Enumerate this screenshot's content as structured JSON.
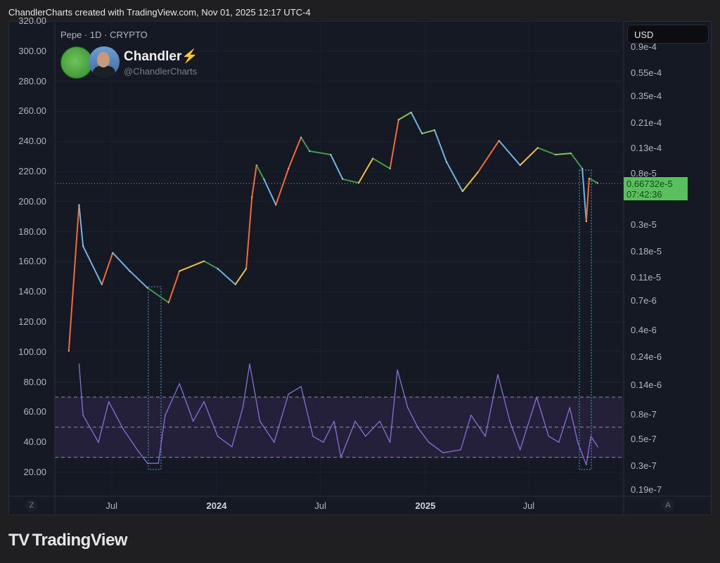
{
  "header": {
    "caption": "ChandlerCharts created with TradingView.com, Nov 01, 2025 12:17 UTC-4"
  },
  "legend": {
    "symbol": "Pepe · 1D · CRYPTO",
    "author_name": "Chandler",
    "author_badge": "⚡",
    "author_handle": "@ChandlerCharts"
  },
  "currency_button": "USD",
  "last_price": {
    "value": "0.66732e-5",
    "countdown": "07:42:36",
    "color": "#5cbf5f"
  },
  "axis_buttons": {
    "left": "Z",
    "right": "A"
  },
  "footer_logo": {
    "mark": "TV",
    "text": "TradingView"
  },
  "colors": {
    "background": "#151924",
    "rsi": "#8a70d6",
    "rsi_band": "#2a2340",
    "price_up": "#c8d84a",
    "price_down": "#6fb3e0"
  },
  "chart_data": [
    {
      "type": "line",
      "title": "Pepe · 1D · CRYPTO",
      "scale": "log",
      "axis": "right",
      "yticks": [
        "0.9e-4",
        "0.55e-4",
        "0.35e-4",
        "0.21e-4",
        "0.13e-4",
        "0.8e-5",
        "0.3e-5",
        "0.18e-5",
        "0.11e-5",
        "0.7e-6",
        "0.4e-6",
        "0.24e-6",
        "0.14e-6",
        "0.8e-7",
        "0.5e-7",
        "0.3e-7",
        "0.19e-7"
      ],
      "ytick_values": [
        9e-05,
        5.5e-05,
        3.5e-05,
        2.1e-05,
        1.3e-05,
        8e-06,
        3e-06,
        1.8e-06,
        1.1e-06,
        7e-07,
        4e-07,
        2.4e-07,
        1.4e-07,
        8e-08,
        5e-08,
        3e-08,
        1.9e-08
      ],
      "xticks": [
        "Jul",
        "2024",
        "Jul",
        "2025",
        "Jul"
      ],
      "xtick_dates": [
        "2023-07-01",
        "2024-01-01",
        "2024-07-01",
        "2025-01-01",
        "2025-07-01"
      ],
      "points": [
        [
          "2023-04-17",
          2.7e-07
        ],
        [
          "2023-05-05",
          4.4e-06
        ],
        [
          "2023-05-12",
          2e-06
        ],
        [
          "2023-06-14",
          9.6e-07
        ],
        [
          "2023-07-03",
          1.76e-06
        ],
        [
          "2023-08-02",
          1.24e-06
        ],
        [
          "2023-09-02",
          9e-07
        ],
        [
          "2023-10-09",
          6.8e-07
        ],
        [
          "2023-10-28",
          1.24e-06
        ],
        [
          "2023-12-10",
          1.5e-06
        ],
        [
          "2024-01-03",
          1.3e-06
        ],
        [
          "2024-02-03",
          9.6e-07
        ],
        [
          "2024-02-22",
          1.3e-06
        ],
        [
          "2024-03-03",
          5.1e-06
        ],
        [
          "2024-03-11",
          9.4e-06
        ],
        [
          "2024-03-24",
          7.2e-06
        ],
        [
          "2024-04-14",
          4.4e-06
        ],
        [
          "2024-05-06",
          8.8e-06
        ],
        [
          "2024-05-28",
          1.6e-05
        ],
        [
          "2024-06-12",
          1.23e-05
        ],
        [
          "2024-07-19",
          1.15e-05
        ],
        [
          "2024-08-09",
          7.2e-06
        ],
        [
          "2024-09-06",
          6.7e-06
        ],
        [
          "2024-10-01",
          1.07e-05
        ],
        [
          "2024-10-31",
          8.8e-06
        ],
        [
          "2024-11-15",
          2.24e-05
        ],
        [
          "2024-12-07",
          2.58e-05
        ],
        [
          "2024-12-26",
          1.72e-05
        ],
        [
          "2025-01-17",
          1.84e-05
        ],
        [
          "2025-02-07",
          1e-05
        ],
        [
          "2025-03-07",
          5.7e-06
        ],
        [
          "2025-04-03",
          8.2e-06
        ],
        [
          "2025-05-10",
          1.5e-05
        ],
        [
          "2025-06-16",
          9.4e-06
        ],
        [
          "2025-07-17",
          1.31e-05
        ],
        [
          "2025-08-17",
          1.15e-05
        ],
        [
          "2025-09-13",
          1.18e-05
        ],
        [
          "2025-10-03",
          8.8e-06
        ],
        [
          "2025-10-10",
          3.2e-06
        ],
        [
          "2025-10-15",
          7.3e-06
        ],
        [
          "2025-10-30",
          6.6732e-06
        ]
      ]
    },
    {
      "type": "line",
      "title": "RSI",
      "axis": "left",
      "yticks": [
        "320.00",
        "300.00",
        "280.00",
        "260.00",
        "240.00",
        "220.00",
        "200.00",
        "180.00",
        "160.00",
        "140.00",
        "120.00",
        "100.00",
        "80.00",
        "60.00",
        "40.00",
        "20.00"
      ],
      "ytick_values": [
        320,
        300,
        280,
        260,
        240,
        220,
        200,
        180,
        160,
        140,
        120,
        100,
        80,
        60,
        40,
        20
      ],
      "levels": [
        70,
        50,
        30
      ],
      "points": [
        [
          "2023-05-05",
          92
        ],
        [
          "2023-05-12",
          58
        ],
        [
          "2023-06-08",
          40
        ],
        [
          "2023-06-26",
          67
        ],
        [
          "2023-07-21",
          49
        ],
        [
          "2023-08-15",
          35
        ],
        [
          "2023-09-02",
          26
        ],
        [
          "2023-09-21",
          26
        ],
        [
          "2023-10-03",
          58
        ],
        [
          "2023-10-28",
          79
        ],
        [
          "2023-11-21",
          54
        ],
        [
          "2023-12-10",
          67
        ],
        [
          "2024-01-03",
          44
        ],
        [
          "2024-01-28",
          37
        ],
        [
          "2024-02-16",
          63
        ],
        [
          "2024-02-28",
          92
        ],
        [
          "2024-03-17",
          54
        ],
        [
          "2024-04-11",
          40
        ],
        [
          "2024-05-06",
          72
        ],
        [
          "2024-05-28",
          77
        ],
        [
          "2024-06-18",
          44
        ],
        [
          "2024-07-06",
          40
        ],
        [
          "2024-07-25",
          54
        ],
        [
          "2024-08-06",
          30
        ],
        [
          "2024-08-31",
          54
        ],
        [
          "2024-09-18",
          44
        ],
        [
          "2024-10-13",
          54
        ],
        [
          "2024-10-31",
          40
        ],
        [
          "2024-11-13",
          88
        ],
        [
          "2024-12-01",
          63
        ],
        [
          "2024-12-20",
          49
        ],
        [
          "2025-01-07",
          40
        ],
        [
          "2025-02-01",
          33
        ],
        [
          "2025-03-04",
          35
        ],
        [
          "2025-03-22",
          58
        ],
        [
          "2025-04-16",
          44
        ],
        [
          "2025-05-08",
          85
        ],
        [
          "2025-05-29",
          54
        ],
        [
          "2025-06-16",
          35
        ],
        [
          "2025-07-15",
          70
        ],
        [
          "2025-08-05",
          44
        ],
        [
          "2025-08-23",
          40
        ],
        [
          "2025-09-11",
          63
        ],
        [
          "2025-09-25",
          40
        ],
        [
          "2025-10-10",
          25
        ],
        [
          "2025-10-18",
          44
        ],
        [
          "2025-10-30",
          37
        ]
      ]
    }
  ]
}
